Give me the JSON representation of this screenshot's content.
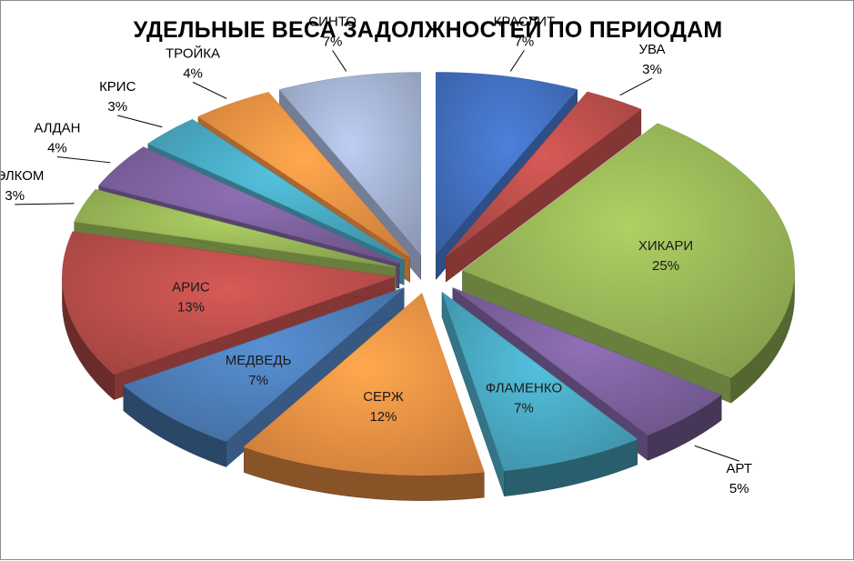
{
  "chart_data": {
    "type": "pie",
    "title": "УДЕЛЬНЫЕ ВЕСА ЗАДОЛЖНОСТЕЙ ПО ПЕРИОДАМ",
    "style": "3d exploded pie, labels with percentages",
    "categories": [
      "КРАСЛИТ",
      "УВА",
      "ХИКАРИ",
      "АРТ",
      "ФЛАМЕНКО",
      "СЕРЖ",
      "МЕДВЕДЬ",
      "АРИС",
      "ФЭЛКОМ",
      "АЛДАН",
      "КРИС",
      "ТРОЙКА",
      "СИНТО"
    ],
    "values": [
      7,
      3,
      25,
      5,
      7,
      12,
      7,
      13,
      3,
      4,
      3,
      4,
      7
    ],
    "labels": [
      "7%",
      "3%",
      "25%",
      "5%",
      "7%",
      "12%",
      "7%",
      "13%",
      "3%",
      "4%",
      "3%",
      "4%",
      "7%"
    ],
    "colors": [
      "#4472C4",
      "#C0504D",
      "#9BBB59",
      "#8064A2",
      "#4BACC6",
      "#F79646",
      "#4F81BD",
      "#C0504D",
      "#9BBB59",
      "#8064A2",
      "#4BACC6",
      "#F79646",
      "#A9B8D9"
    ],
    "legend": "none"
  }
}
